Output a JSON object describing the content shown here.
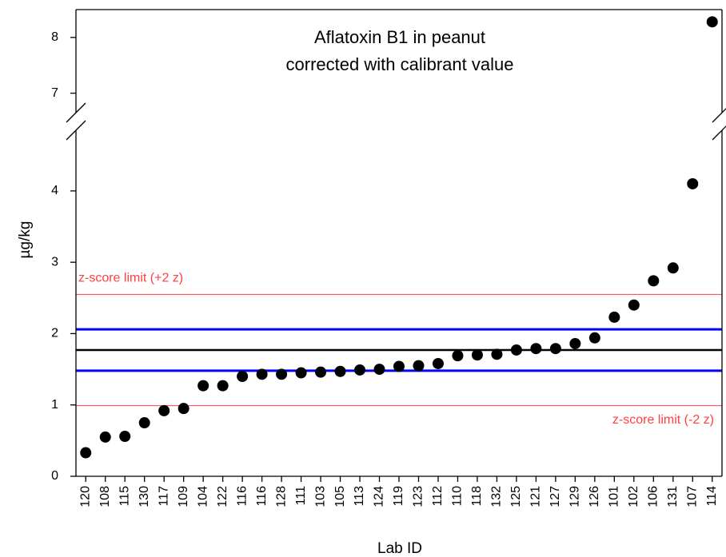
{
  "chart_data": {
    "type": "scatter",
    "title": [
      "Aflatoxin B1 in peanut",
      "corrected with calibrant value"
    ],
    "x_label": "Lab ID",
    "y_label": "µg/kg",
    "categories": [
      "120",
      "108",
      "115",
      "130",
      "117",
      "109",
      "104",
      "122",
      "116",
      "116",
      "128",
      "111",
      "103",
      "105",
      "113",
      "124",
      "119",
      "123",
      "112",
      "110",
      "118",
      "132",
      "125",
      "121",
      "127",
      "129",
      "126",
      "101",
      "102",
      "106",
      "131",
      "107",
      "114"
    ],
    "values": [
      0.33,
      0.55,
      0.56,
      0.75,
      0.92,
      0.95,
      1.27,
      1.27,
      1.4,
      1.43,
      1.43,
      1.45,
      1.46,
      1.47,
      1.49,
      1.5,
      1.54,
      1.55,
      1.58,
      1.69,
      1.7,
      1.71,
      1.77,
      1.79,
      1.79,
      1.86,
      1.94,
      2.23,
      2.4,
      2.74,
      2.92,
      4.1,
      8.28
    ],
    "color": "#000000",
    "ylim": [
      0,
      8.5
    ],
    "ybreak": [
      4.85,
      6.65
    ],
    "yticks": [
      0,
      1,
      2,
      3,
      4,
      7,
      8
    ],
    "reference_lines": [
      {
        "value": 2.55,
        "color": "#ff4040",
        "label": "z-score limit (+2 z)"
      },
      {
        "value": 2.06,
        "color": "#0000ff"
      },
      {
        "value": 1.77,
        "color": "#000000"
      },
      {
        "value": 1.48,
        "color": "#0000ff"
      },
      {
        "value": 0.99,
        "color": "#ff4040",
        "label": "z-score limit (-2 z)"
      }
    ]
  }
}
